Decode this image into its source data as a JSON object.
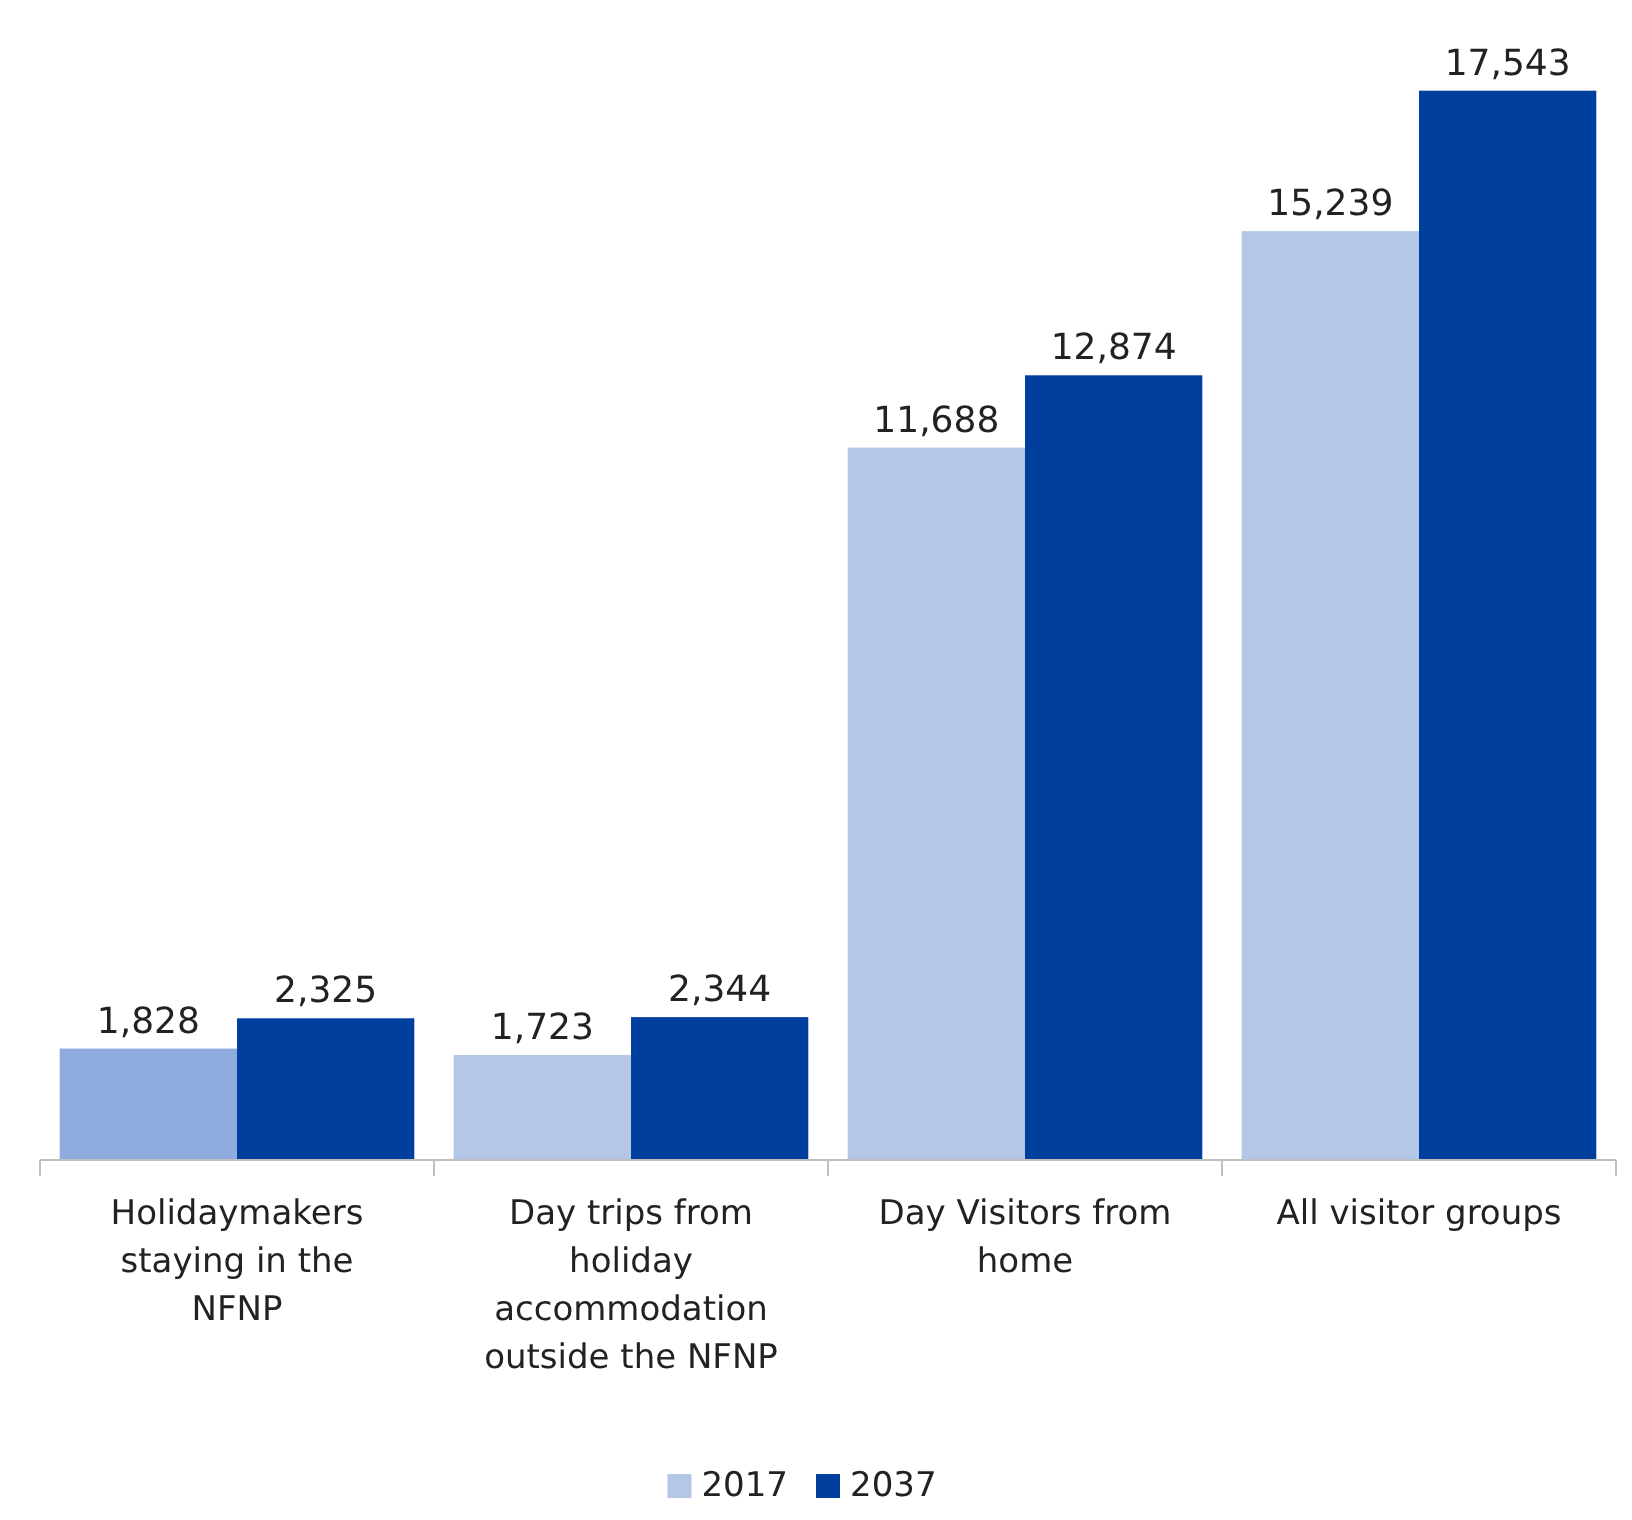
{
  "chart_data": {
    "type": "bar",
    "categories": [
      "Holidaymakers staying in the NFNP",
      "Day trips from holiday accommodation outside the NFNP",
      "Day Visitors from home",
      "All visitor groups"
    ],
    "series": [
      {
        "name": "2017",
        "color": "#b4c7e7",
        "colors": [
          "#8faadc",
          "#b4c7e7",
          "#b4c7e7",
          "#b4c7e7"
        ],
        "values": [
          1828,
          1723,
          11688,
          15239
        ],
        "value_labels": [
          "1,828",
          "1,723",
          "11,688",
          "15,239"
        ]
      },
      {
        "name": "2037",
        "color": "#003f9e",
        "values": [
          2325,
          2344,
          12874,
          17543
        ],
        "value_labels": [
          "2,325",
          "2,344",
          "12,874",
          "17,543"
        ]
      }
    ],
    "legend": "bottom"
  }
}
